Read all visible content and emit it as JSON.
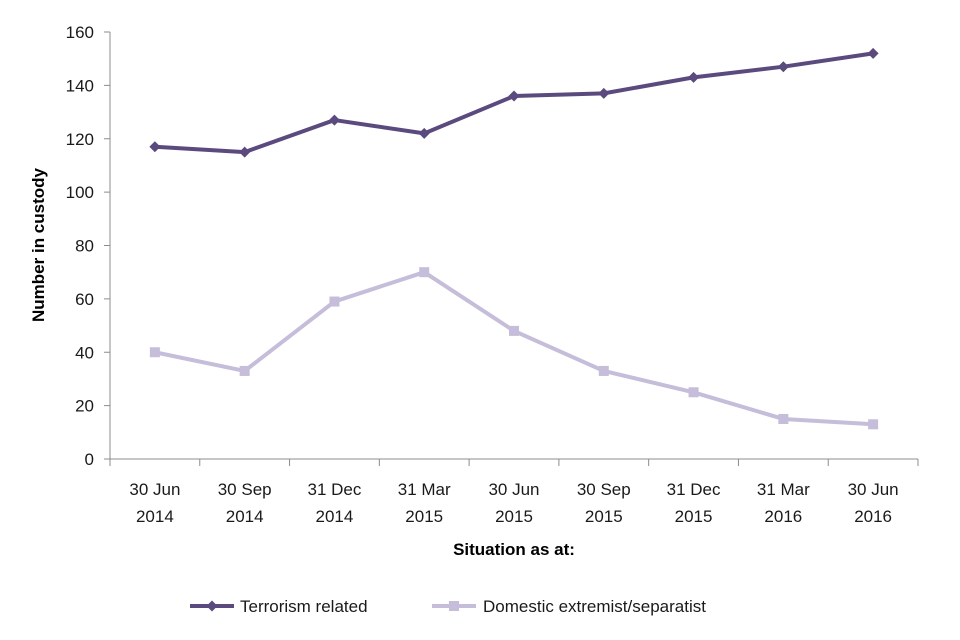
{
  "chart_data": {
    "type": "line",
    "title": "",
    "xlabel": "Situation as at:",
    "ylabel": "Number in custody",
    "ylim": [
      0,
      160
    ],
    "yticks": [
      0,
      20,
      40,
      60,
      80,
      100,
      120,
      140,
      160
    ],
    "categories": [
      [
        "30 Jun",
        "2014"
      ],
      [
        "30 Sep",
        "2014"
      ],
      [
        "31 Dec",
        "2014"
      ],
      [
        "31 Mar",
        "2015"
      ],
      [
        "30 Jun",
        "2015"
      ],
      [
        "30 Sep",
        "2015"
      ],
      [
        "31 Dec",
        "2015"
      ],
      [
        "31 Mar",
        "2016"
      ],
      [
        "30 Jun",
        "2016"
      ]
    ],
    "series": [
      {
        "name": "Terrorism related",
        "marker": "diamond",
        "color": "#5b4a7e",
        "values": [
          117,
          115,
          127,
          122,
          136,
          137,
          143,
          147,
          152
        ]
      },
      {
        "name": "Domestic extremist/separatist",
        "marker": "square",
        "color": "#c5bdd9",
        "values": [
          40,
          33,
          59,
          70,
          48,
          33,
          25,
          15,
          13
        ]
      }
    ],
    "grid": false,
    "legend": "bottom"
  }
}
